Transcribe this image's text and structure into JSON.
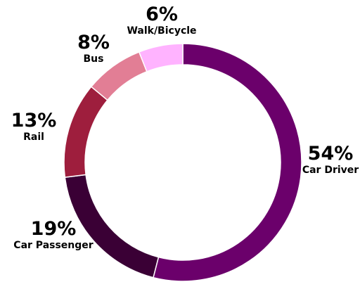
{
  "chart_data": {
    "type": "pie",
    "donut": true,
    "categories": [
      "Car Driver",
      "Car Passenger",
      "Rail",
      "Bus",
      "Walk/Bicycle"
    ],
    "values": [
      54,
      19,
      13,
      8,
      6
    ],
    "value_labels": [
      "54%",
      "19%",
      "13%",
      "8%",
      "6%"
    ],
    "colors": [
      "#6b006b",
      "#3a0035",
      "#9e1e3d",
      "#e27e95",
      "#ffb3ff"
    ],
    "start_angle_deg": 0,
    "direction": "clockwise",
    "title": "",
    "legend": "none"
  }
}
